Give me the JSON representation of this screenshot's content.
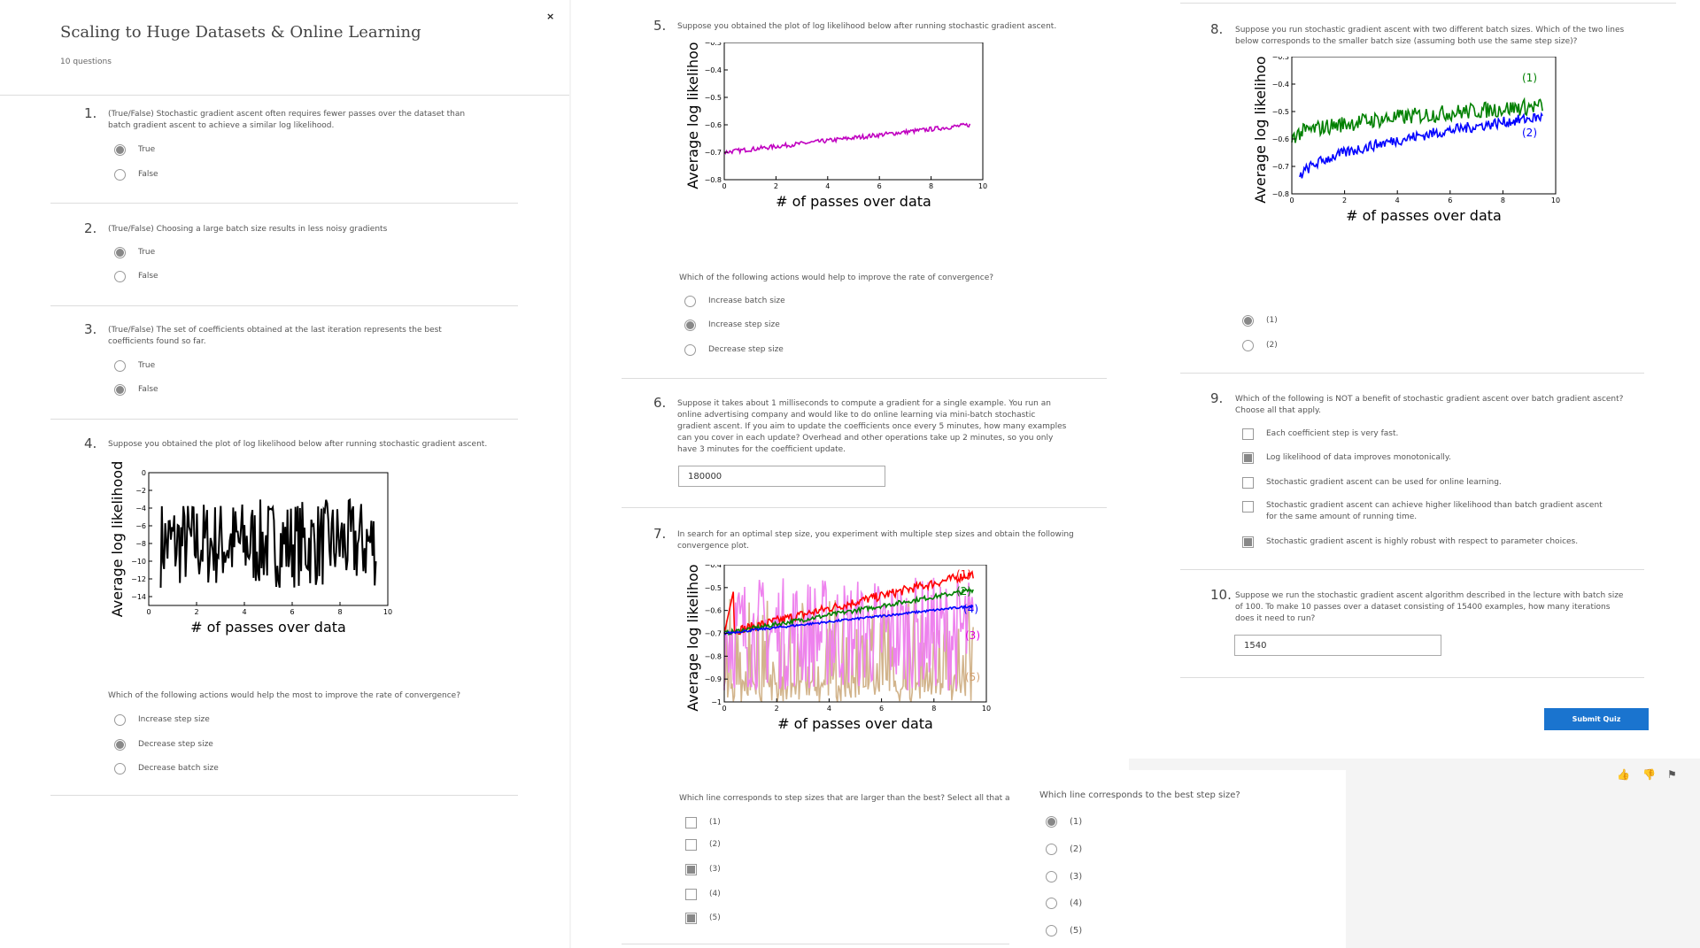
{
  "quiz": {
    "title": "Scaling to Huge Datasets & Online Learning",
    "count": "10 questions",
    "close": "×"
  },
  "questions": {
    "q1": {
      "num": "1.",
      "text": "(True/False) Stochastic gradient ascent often requires fewer passes over the dataset than batch gradient ascent to achieve a similar log likelihood.",
      "options": [
        "True",
        "False"
      ],
      "selected": 0
    },
    "q2": {
      "num": "2.",
      "text": "(True/False) Choosing a large batch size results in less noisy gradients",
      "options": [
        "True",
        "False"
      ],
      "selected": 0
    },
    "q3": {
      "num": "3.",
      "text": "(True/False) The set of coefficients obtained at the last iteration represents the best coefficients found so far.",
      "options": [
        "True",
        "False"
      ],
      "selected": 1
    },
    "q4": {
      "num": "4.",
      "text": "Suppose you obtained the plot of log likelihood below after running stochastic gradient ascent.",
      "prompt": "Which of the following actions would help the most to improve the rate of convergence?",
      "options": [
        "Increase step size",
        "Decrease step size",
        "Decrease batch size"
      ],
      "selected": 1
    },
    "q5": {
      "num": "5.",
      "text": "Suppose you obtained the plot of log likelihood below after running stochastic gradient ascent.",
      "prompt": "Which of the following actions would help to improve the rate of convergence?",
      "options": [
        "Increase batch size",
        "Increase step size",
        "Decrease step size"
      ],
      "selected": 1
    },
    "q6": {
      "num": "6.",
      "text": "Suppose it takes about 1 milliseconds to compute a gradient for a single example. You run an online advertising company and would like to do online learning via mini-batch stochastic gradient ascent. If you aim to update the coefficients once every 5 minutes, how many examples can you cover in each update? Overhead and other operations take up 2 minutes, so you only have 3 minutes for the coefficient update.",
      "answer": "180000"
    },
    "q7": {
      "num": "7.",
      "text": "In search for an optimal step size, you experiment with multiple step sizes and obtain the following convergence plot.",
      "prompt_a": "Which line corresponds to step sizes that are larger than the best? Select all that apply.",
      "options_a": [
        "(1)",
        "(2)",
        "(3)",
        "(4)",
        "(5)"
      ],
      "checked_a": [
        false,
        false,
        true,
        false,
        true
      ],
      "prompt_b": "Which line corresponds to the best step size?",
      "options_b": [
        "(1)",
        "(2)",
        "(3)",
        "(4)",
        "(5)"
      ],
      "selected_b": 0
    },
    "q8": {
      "num": "8.",
      "text": "Suppose you run stochastic gradient ascent with two different batch sizes. Which of the two lines below corresponds to the smaller batch size (assuming both use the same step size)?",
      "options": [
        "(1)",
        "(2)"
      ],
      "selected": 0
    },
    "q9": {
      "num": "9.",
      "text": "Which of the following is NOT a benefit of stochastic gradient ascent over batch gradient ascent? Choose all that apply.",
      "options": [
        "Each coefficient step is very fast.",
        "Log likelihood of data improves monotonically.",
        "Stochastic gradient ascent can be used for online learning.",
        "Stochastic gradient ascent can achieve higher likelihood than batch gradient ascent for the same amount of running time.",
        "Stochastic gradient ascent is highly robust with respect to parameter choices."
      ],
      "checked": [
        false,
        true,
        false,
        false,
        true
      ]
    },
    "q10": {
      "num": "10.",
      "text": "Suppose we run the stochastic gradient ascent algorithm described in the lecture with batch size of 100. To make 10 passes over a dataset consisting of 15400 examples, how many iterations does it need to run?",
      "answer": "1540"
    }
  },
  "submit": "Submit Quiz",
  "footer_icons": [
    "thumbs-up-icon",
    "thumbs-down-icon",
    "flag-icon"
  ],
  "chart_data": [
    {
      "id": "q4",
      "type": "line",
      "xlabel": "# of passes over data",
      "ylabel": "Average log likelihood",
      "xlim": [
        0,
        10
      ],
      "ylim": [
        -15,
        0
      ],
      "xticks": [
        0,
        2,
        4,
        6,
        8,
        10
      ],
      "yticks": [
        0,
        -2,
        -4,
        -6,
        -8,
        -10,
        -12,
        -14
      ],
      "series": [
        {
          "color": "#000000",
          "noisy": true,
          "x": [
            0.5,
            9.5
          ],
          "y_center": [
            -7,
            -7
          ],
          "y_range": [
            -13,
            -3
          ]
        }
      ]
    },
    {
      "id": "q5",
      "type": "line",
      "xlabel": "# of passes over data",
      "ylabel": "Average log likelihood",
      "xlim": [
        0,
        10
      ],
      "ylim": [
        -0.8,
        -0.3
      ],
      "xticks": [
        0,
        2,
        4,
        6,
        8,
        10
      ],
      "yticks": [
        -0.3,
        -0.4,
        -0.5,
        -0.6,
        -0.7,
        -0.8
      ],
      "series": [
        {
          "color": "#c000c0",
          "noisy": true,
          "x": [
            0,
            9.5
          ],
          "y_center": [
            -0.7,
            -0.6
          ],
          "noise": 0.008
        }
      ]
    },
    {
      "id": "q7",
      "type": "line",
      "xlabel": "# of passes over data",
      "ylabel": "Average log likelihood",
      "xlim": [
        0,
        10
      ],
      "ylim": [
        -1.0,
        -0.4
      ],
      "xticks": [
        0,
        2,
        4,
        6,
        8,
        10
      ],
      "yticks": [
        -0.4,
        -0.5,
        -0.6,
        -0.7,
        -0.8,
        -0.9,
        -1.0
      ],
      "series": [
        {
          "name": "(1)",
          "color": "#ff0000",
          "x": [
            0,
            9.5
          ],
          "y_center": [
            -0.7,
            -0.44
          ],
          "noise": 0.02
        },
        {
          "name": "(2)",
          "color": "#008000",
          "x": [
            0,
            9.5
          ],
          "y_center": [
            -0.7,
            -0.51
          ],
          "noise": 0.01
        },
        {
          "name": "(3)",
          "color": "#ee82ee",
          "x": [
            0,
            9.5
          ],
          "y_center": [
            -0.6,
            -0.5
          ],
          "y_range": [
            -0.95,
            -0.45
          ]
        },
        {
          "name": "(4)",
          "color": "#0000ff",
          "x": [
            0,
            9.5
          ],
          "y_center": [
            -0.7,
            -0.58
          ],
          "noise": 0.005
        },
        {
          "name": "(5)",
          "color": "#d2b48c",
          "x": [
            0,
            9.5
          ],
          "y_center": [
            -0.85,
            -0.85
          ],
          "y_range": [
            -1.0,
            -0.55
          ]
        }
      ]
    },
    {
      "id": "q8",
      "type": "line",
      "xlabel": "# of passes over data",
      "ylabel": "Average log likelihood",
      "xlim": [
        0,
        10
      ],
      "ylim": [
        -0.8,
        -0.3
      ],
      "xticks": [
        0,
        2,
        4,
        6,
        8,
        10
      ],
      "yticks": [
        -0.3,
        -0.4,
        -0.5,
        -0.6,
        -0.7,
        -0.8
      ],
      "series": [
        {
          "name": "(1)",
          "color": "#008000",
          "x": [
            0,
            9.5
          ],
          "y_center": [
            -0.6,
            -0.48
          ],
          "noise": 0.03
        },
        {
          "name": "(2)",
          "color": "#0000ff",
          "x": [
            0.3,
            9.5
          ],
          "y_center": [
            -0.75,
            -0.52
          ],
          "noise": 0.02
        }
      ]
    }
  ]
}
